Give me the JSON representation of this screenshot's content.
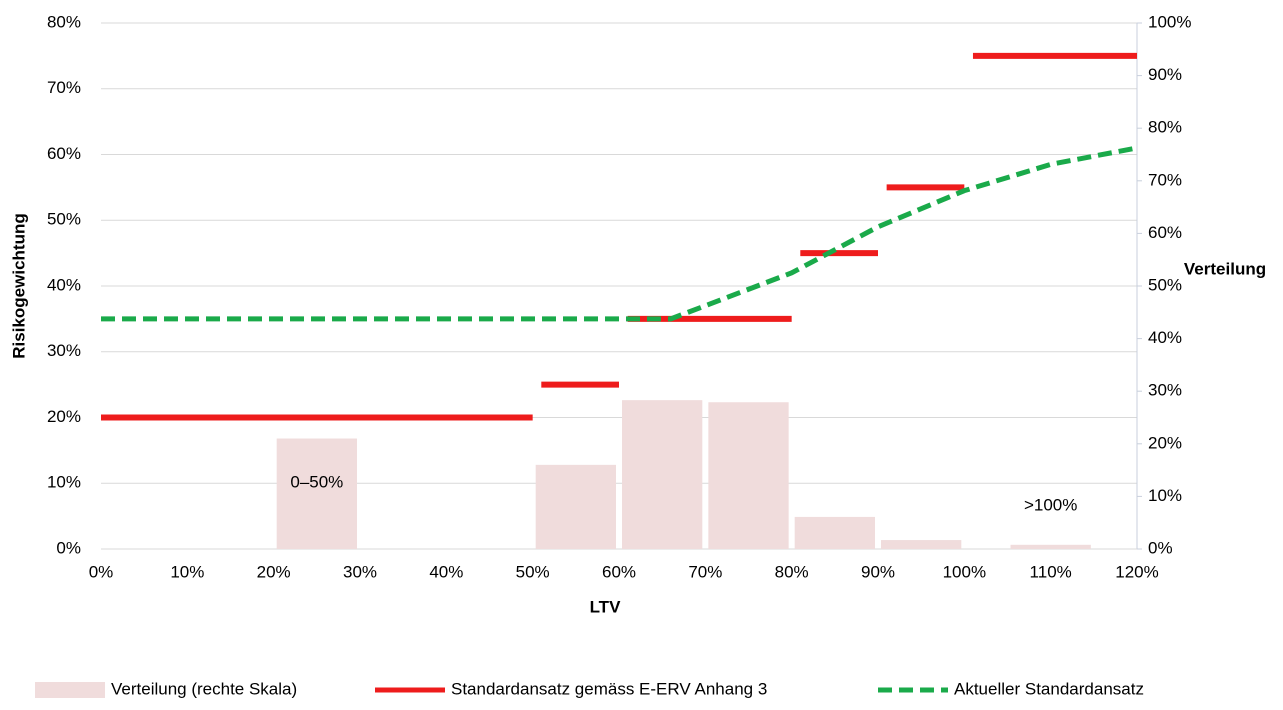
{
  "chart_data": {
    "type": "combo",
    "xlabel": "LTV",
    "ylabel": "Risikogewichtung",
    "y2label": "Verteilung",
    "xlim": [
      0,
      120
    ],
    "xticks": [
      {
        "value": 0,
        "label": "0%"
      },
      {
        "value": 10,
        "label": "10%"
      },
      {
        "value": 20,
        "label": "20%"
      },
      {
        "value": 30,
        "label": "30%"
      },
      {
        "value": 40,
        "label": "40%"
      },
      {
        "value": 50,
        "label": "50%"
      },
      {
        "value": 60,
        "label": "60%"
      },
      {
        "value": 70,
        "label": "70%"
      },
      {
        "value": 80,
        "label": "80%"
      },
      {
        "value": 90,
        "label": "90%"
      },
      {
        "value": 100,
        "label": "100%"
      },
      {
        "value": 110,
        "label": "110%"
      },
      {
        "value": 120,
        "label": "120%"
      }
    ],
    "ylim": [
      0,
      80
    ],
    "yticks": [
      {
        "value": 0,
        "label": "0%"
      },
      {
        "value": 10,
        "label": "10%"
      },
      {
        "value": 20,
        "label": "20%"
      },
      {
        "value": 30,
        "label": "30%"
      },
      {
        "value": 40,
        "label": "40%"
      },
      {
        "value": 50,
        "label": "50%"
      },
      {
        "value": 60,
        "label": "60%"
      },
      {
        "value": 70,
        "label": "70%"
      },
      {
        "value": 80,
        "label": "80%"
      }
    ],
    "y2lim": [
      0,
      100
    ],
    "y2ticks": [
      {
        "value": 0,
        "label": "0%"
      },
      {
        "value": 10,
        "label": "10%"
      },
      {
        "value": 20,
        "label": "20%"
      },
      {
        "value": 30,
        "label": "30%"
      },
      {
        "value": 40,
        "label": "40%"
      },
      {
        "value": 50,
        "label": "50%"
      },
      {
        "value": 60,
        "label": "60%"
      },
      {
        "value": 70,
        "label": "70%"
      },
      {
        "value": 80,
        "label": "80%"
      },
      {
        "value": 90,
        "label": "90%"
      },
      {
        "value": 100,
        "label": "100%"
      }
    ],
    "grid": true,
    "legend": "bottom",
    "series": [
      {
        "name": "Verteilung (rechte Skala)",
        "type": "bar",
        "axis": "y2",
        "color": "#f0dcdc",
        "x": [
          25,
          55,
          65,
          75,
          85,
          95,
          110
        ],
        "values": [
          21,
          16,
          28.3,
          27.9,
          6.1,
          1.7,
          0.8
        ]
      },
      {
        "name": "Standardansatz gemäss E-ERV Anhang 3",
        "type": "step",
        "color": "#ee1c1c",
        "x_start": [
          0,
          51,
          61,
          81,
          91,
          101
        ],
        "x_end": [
          50,
          60,
          80,
          90,
          100,
          120
        ],
        "values": [
          20,
          25,
          35,
          45,
          55,
          75
        ]
      },
      {
        "name": "Aktueller Standardansatz",
        "type": "line",
        "color": "#1aaa4a",
        "dashed": true,
        "x": [
          0,
          66,
          70,
          80,
          90,
          100,
          110,
          120
        ],
        "values": [
          35,
          35,
          37,
          42,
          49,
          54.5,
          58.5,
          61
        ]
      }
    ],
    "annotations": [
      {
        "text": "0–50%",
        "x": 25,
        "y": 10
      },
      {
        "text": ">100%",
        "x": 110,
        "y": 6.5
      }
    ]
  }
}
